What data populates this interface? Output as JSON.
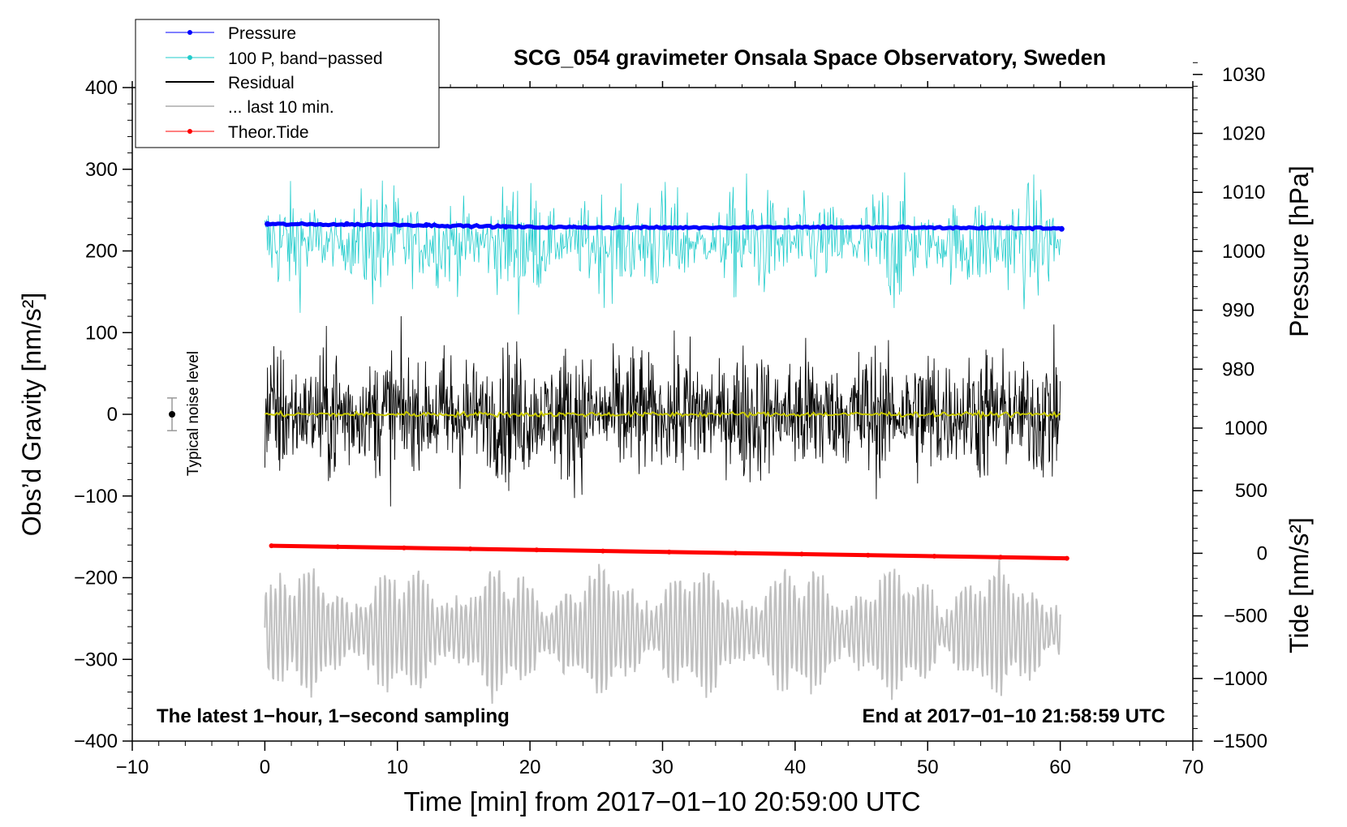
{
  "chart_data": {
    "type": "line",
    "title": "SCG_054 gravimeter Onsala Space Observatory, Sweden",
    "xlabel": "Time [min] from 2017−01−10 20:59:00 UTC",
    "ylabel_left": "Obs’d Gravity [nm/s²]",
    "ylabel_right_top": "Pressure [hPa]",
    "ylabel_right_bottom": "Tide [nm/s²]",
    "xlim": [
      -10,
      70
    ],
    "ylim_left": [
      -400,
      400
    ],
    "pressure_axis_range": [
      970,
      1033
    ],
    "tide_axis_range": [
      -1500,
      1000
    ],
    "x_ticks": [
      "−10",
      "0",
      "10",
      "20",
      "30",
      "40",
      "50",
      "60",
      "70"
    ],
    "x_tick_values": [
      -10,
      0,
      10,
      20,
      30,
      40,
      50,
      60,
      70
    ],
    "y_left_ticks": [
      "400",
      "300",
      "200",
      "100",
      "0",
      "−100",
      "−200",
      "−300",
      "−400"
    ],
    "y_left_tick_values": [
      400,
      300,
      200,
      100,
      0,
      -100,
      -200,
      -300,
      -400
    ],
    "pressure_ticks": [
      "1030",
      "1020",
      "1010",
      "1000",
      "990",
      "980"
    ],
    "pressure_tick_values": [
      1030,
      1020,
      1010,
      1000,
      990,
      980
    ],
    "tide_ticks": [
      "1000",
      "500",
      "0",
      "−500",
      "−1000",
      "−1500"
    ],
    "tide_tick_values": [
      1000,
      500,
      0,
      -500,
      -1000,
      -1500
    ],
    "legend": [
      {
        "label": "Pressure",
        "color": "#0000ff",
        "marker": true
      },
      {
        "label": "100 P, band−passed",
        "color": "#22cccc",
        "marker": true
      },
      {
        "label": "Residual",
        "color": "#000000",
        "marker": false
      },
      {
        "label": "... last 10 min.",
        "color": "#c0c0c0",
        "marker": false
      },
      {
        "label": "Theor.Tide",
        "color": "#ff0000",
        "marker": true
      }
    ],
    "legend_position": "top-left",
    "annotations": {
      "bottom_left": "The latest 1−hour, 1−second sampling",
      "bottom_right": "End at 2017−01−10 21:58:59 UTC",
      "noise_label": "Typical noise level"
    },
    "noise_bar": {
      "x": -7,
      "y": 0,
      "err": 20
    },
    "series": [
      {
        "name": "Pressure",
        "axis": "pressure_hPa",
        "x": [
          0,
          10,
          20,
          30,
          40,
          50,
          60
        ],
        "values": [
          1004.6,
          1004.5,
          1004.1,
          1004.0,
          1004.1,
          1004.0,
          1003.9
        ],
        "color": "#0000ff"
      },
      {
        "name": "100 P, band−passed",
        "axis": "left_nm_s2",
        "center": 210,
        "amplitude": 75,
        "x_range": [
          0,
          60
        ],
        "color": "#22cccc"
      },
      {
        "name": "Residual",
        "axis": "left_nm_s2",
        "center": 0,
        "amplitude": 95,
        "x_range": [
          0,
          60
        ],
        "color": "#000000"
      },
      {
        "name": "Residual (smoothed)",
        "axis": "left_nm_s2",
        "center": 0,
        "amplitude": 3,
        "x_range": [
          0,
          60
        ],
        "color": "#c8c800"
      },
      {
        "name": "... last 10 min.",
        "axis": "left_nm_s2",
        "center": -265,
        "amplitude": 80,
        "x_range": [
          0,
          60
        ],
        "color": "#c0c0c0"
      },
      {
        "name": "Theor.Tide",
        "axis": "tide_nm_s2",
        "x": [
          0.5,
          60.5
        ],
        "values": [
          60,
          -40
        ],
        "color": "#ff0000"
      }
    ]
  }
}
